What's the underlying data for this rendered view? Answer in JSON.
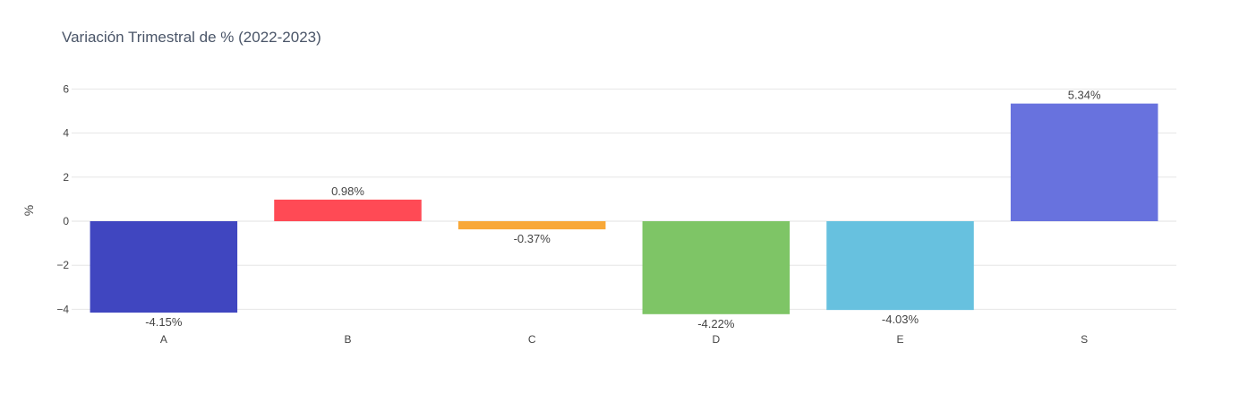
{
  "chart_data": {
    "type": "bar",
    "title": "Variación Trimestral de % (2022-2023)",
    "xlabel": "",
    "ylabel": "%",
    "categories": [
      "A",
      "B",
      "C",
      "D",
      "E",
      "S"
    ],
    "values": [
      -4.15,
      0.98,
      -0.37,
      -4.22,
      -4.03,
      5.34
    ],
    "data_labels": [
      "-4.15%",
      "0.98%",
      "-0.37%",
      "-4.22%",
      "-4.03%",
      "5.34%"
    ],
    "colors": [
      "#4046c0",
      "#ff4a55",
      "#f8a838",
      "#7ec566",
      "#67c1df",
      "#6872de"
    ],
    "yticks": [
      -4,
      -2,
      0,
      2,
      4,
      6
    ],
    "ytick_labels": [
      "−4",
      "−2",
      "0",
      "2",
      "4",
      "6"
    ],
    "ylim": [
      -4.4,
      6.6
    ],
    "grid": true,
    "legend": "none"
  }
}
